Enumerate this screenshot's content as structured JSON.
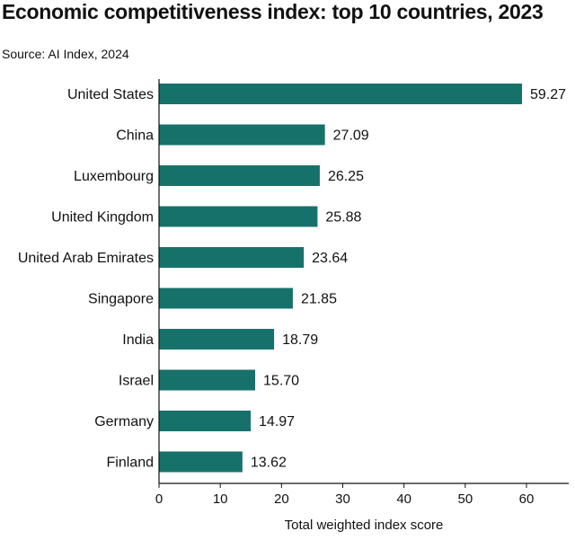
{
  "header": {
    "title": "Economic competitiveness index: top 10 countries, 2023",
    "source": "Source: AI Index, 2024"
  },
  "colors": {
    "bar": "#17716b",
    "axis": "#111111",
    "text": "#111111"
  },
  "chart_data": {
    "type": "bar",
    "orientation": "horizontal",
    "title": "Economic competitiveness index: top 10 countries, 2023",
    "xlabel": "Total weighted index score",
    "ylabel": "",
    "xlim": [
      0,
      65
    ],
    "xticks": [
      0,
      10,
      20,
      30,
      40,
      50,
      60
    ],
    "grid": false,
    "categories": [
      "United States",
      "China",
      "Luxembourg",
      "United Kingdom",
      "United Arab Emirates",
      "Singapore",
      "India",
      "Israel",
      "Germany",
      "Finland"
    ],
    "values": [
      59.27,
      27.09,
      26.25,
      25.88,
      23.64,
      21.85,
      18.79,
      15.7,
      14.97,
      13.62
    ],
    "value_labels": [
      "59.27",
      "27.09",
      "26.25",
      "25.88",
      "23.64",
      "21.85",
      "18.79",
      "15.70",
      "14.97",
      "13.62"
    ]
  }
}
